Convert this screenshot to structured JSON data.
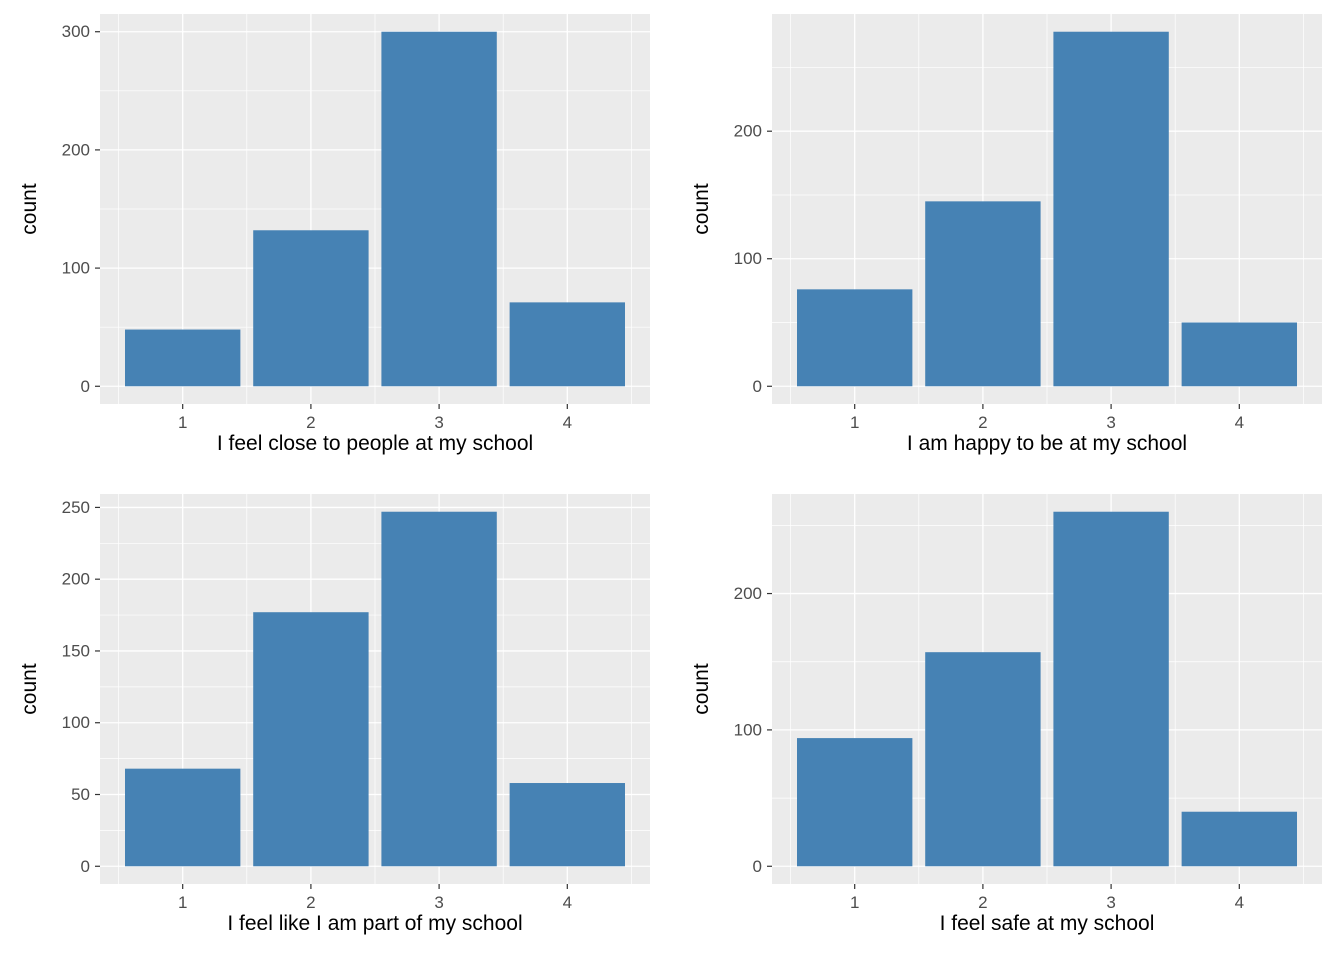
{
  "style": {
    "bar_color": "#4682B4",
    "panel_background": "#EBEBEB",
    "grid_color": "#FFFFFF",
    "tick_mark_color": "#333333",
    "tick_label_color": "#4D4D4D",
    "axis_title_color": "#000000",
    "page_background": "#FFFFFF"
  },
  "chart_data": [
    {
      "type": "bar",
      "title": "",
      "xlabel": "I feel close to people at my school",
      "ylabel": "count",
      "categories": [
        "1",
        "2",
        "3",
        "4"
      ],
      "values": [
        48,
        132,
        300,
        71
      ],
      "yticks": [
        0,
        100,
        200,
        300
      ],
      "ylim": [
        0,
        315
      ],
      "grid": true,
      "legend": false
    },
    {
      "type": "bar",
      "title": "",
      "xlabel": "I am happy to be at my school",
      "ylabel": "count",
      "categories": [
        "1",
        "2",
        "3",
        "4"
      ],
      "values": [
        76,
        145,
        278,
        50
      ],
      "yticks": [
        0,
        100,
        200
      ],
      "ylim": [
        0,
        292
      ],
      "grid": true,
      "legend": false
    },
    {
      "type": "bar",
      "title": "",
      "xlabel": "I feel like I am part of my school",
      "ylabel": "count",
      "categories": [
        "1",
        "2",
        "3",
        "4"
      ],
      "values": [
        68,
        177,
        247,
        58
      ],
      "yticks": [
        0,
        50,
        100,
        150,
        200,
        250
      ],
      "ylim": [
        0,
        259
      ],
      "grid": true,
      "legend": false
    },
    {
      "type": "bar",
      "title": "",
      "xlabel": "I feel safe at my school",
      "ylabel": "count",
      "categories": [
        "1",
        "2",
        "3",
        "4"
      ],
      "values": [
        94,
        157,
        260,
        40
      ],
      "yticks": [
        0,
        100,
        200
      ],
      "ylim": [
        0,
        273
      ],
      "grid": true,
      "legend": false
    }
  ]
}
